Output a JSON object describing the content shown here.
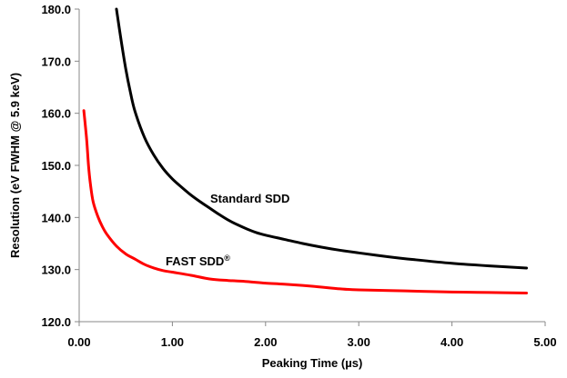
{
  "chart_data": {
    "type": "line",
    "title": "",
    "xlabel": "Peaking Time (µs)",
    "ylabel": "Resolution (eV FWHM @ 5.9 keV)",
    "xlim": [
      0,
      5
    ],
    "ylim": [
      120,
      180
    ],
    "x_ticks": [
      "0.00",
      "1.00",
      "2.00",
      "3.00",
      "4.00",
      "5.00"
    ],
    "y_ticks": [
      "120.0",
      "130.0",
      "140.0",
      "150.0",
      "160.0",
      "170.0",
      "180.0"
    ],
    "grid": false,
    "series": [
      {
        "name": "Standard SDD",
        "label_sup": "",
        "color": "#000000",
        "x": [
          0.4,
          0.45,
          0.5,
          0.55,
          0.6,
          0.7,
          0.8,
          0.9,
          1.0,
          1.1,
          1.2,
          1.3,
          1.4,
          1.5,
          1.6,
          1.7,
          1.8,
          1.9,
          2.0,
          2.2,
          2.4,
          2.6,
          2.8,
          3.0,
          3.3,
          3.6,
          4.0,
          4.4,
          4.8
        ],
        "y": [
          180.0,
          174.0,
          168.5,
          164.0,
          160.3,
          155.4,
          152.0,
          149.4,
          147.4,
          145.8,
          144.3,
          143.0,
          141.8,
          140.6,
          139.5,
          138.6,
          137.8,
          137.1,
          136.6,
          135.8,
          135.0,
          134.3,
          133.7,
          133.2,
          132.5,
          131.9,
          131.2,
          130.7,
          130.3
        ]
      },
      {
        "name": "FAST SDD",
        "label_sup": "®",
        "color": "#ff0000",
        "x": [
          0.05,
          0.08,
          0.1,
          0.12,
          0.15,
          0.2,
          0.25,
          0.3,
          0.4,
          0.5,
          0.6,
          0.7,
          0.8,
          0.9,
          1.0,
          1.2,
          1.4,
          1.6,
          1.8,
          2.0,
          2.2,
          2.5,
          2.8,
          3.0,
          3.5,
          4.0,
          4.4,
          4.8
        ],
        "y": [
          160.5,
          155.0,
          150.0,
          146.5,
          143.0,
          140.2,
          138.2,
          136.7,
          134.5,
          133.0,
          132.0,
          131.0,
          130.3,
          129.8,
          129.5,
          128.9,
          128.2,
          127.9,
          127.7,
          127.4,
          127.2,
          126.8,
          126.3,
          126.1,
          125.9,
          125.7,
          125.6,
          125.5
        ]
      }
    ]
  }
}
